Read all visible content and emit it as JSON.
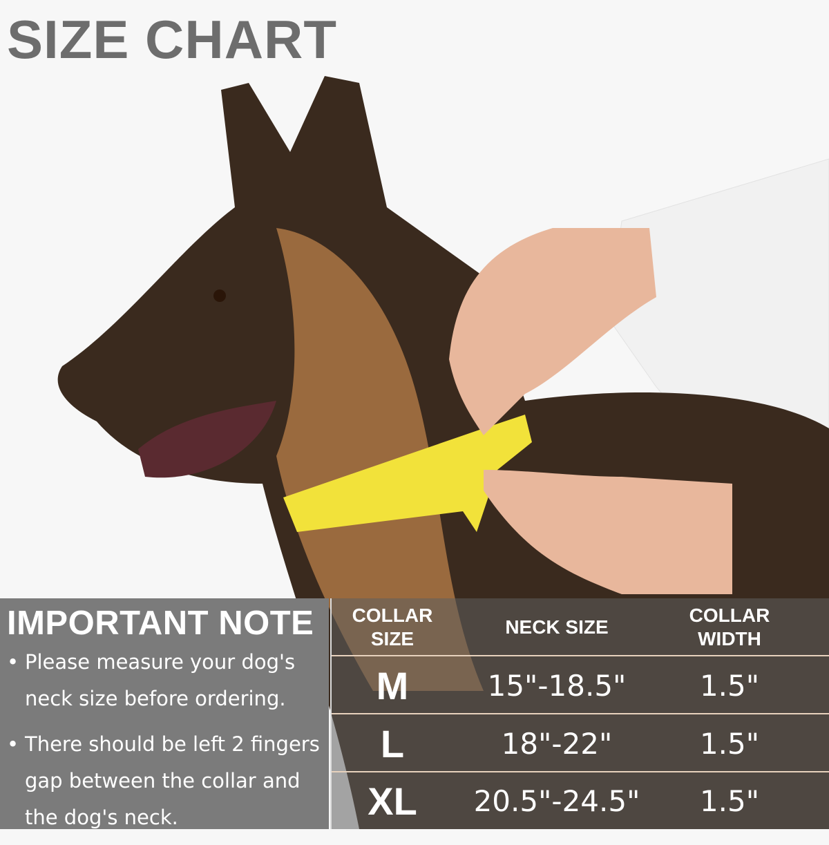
{
  "title": "SIZE CHART",
  "note": {
    "heading": "IMPORTANT NOTE",
    "items": [
      "Please measure your dog's neck size before ordering.",
      "There should be left 2 fingers gap between the collar and the dog's neck."
    ]
  },
  "table": {
    "headers": [
      "COLLAR SIZE",
      "NECK SIZE",
      "COLLAR WIDTH"
    ],
    "rows": [
      {
        "size": "M",
        "neck": "15\"-18.5\"",
        "width": "1.5\""
      },
      {
        "size": "L",
        "neck": "18\"-22\"",
        "width": "1.5\""
      },
      {
        "size": "XL",
        "neck": "20.5\"-24.5\"",
        "width": "1.5\""
      }
    ]
  },
  "colors": {
    "title": "#6d6d6d",
    "note_panel": "#7b7b7b",
    "tape": "#f2e23a"
  }
}
